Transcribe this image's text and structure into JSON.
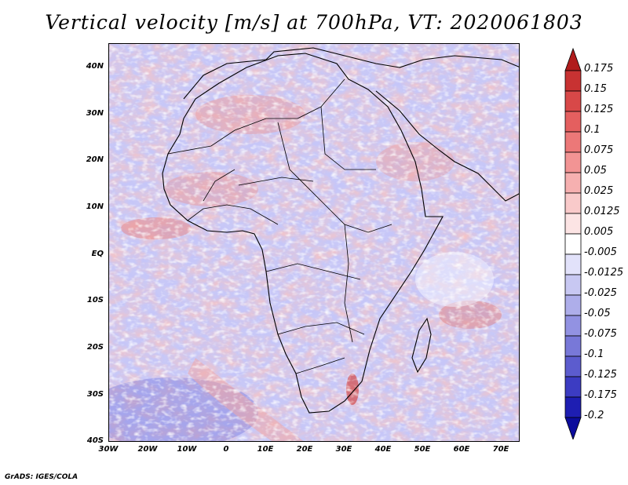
{
  "title": "Vertical velocity [m/s] at 700hPa, VT: 2020061803",
  "credit": "GrADS: IGES/COLA",
  "map": {
    "lat_labels": [
      "40N",
      "30N",
      "20N",
      "10N",
      "EQ",
      "10S",
      "20S",
      "30S",
      "40S"
    ],
    "lon_labels": [
      "30W",
      "20W",
      "10W",
      "0",
      "10E",
      "20E",
      "30E",
      "40E",
      "50E",
      "60E",
      "70E"
    ],
    "lat_range": [
      -40,
      45
    ],
    "lon_range": [
      -30,
      75
    ]
  },
  "colorbar": {
    "labels": [
      "0.175",
      "0.15",
      "0.125",
      "0.1",
      "0.075",
      "0.05",
      "0.025",
      "0.0125",
      "0.005",
      "-0.005",
      "-0.0125",
      "-0.025",
      "-0.05",
      "-0.075",
      "-0.1",
      "-0.125",
      "-0.175",
      "-0.2"
    ],
    "colors": [
      "#b01c1c",
      "#c83232",
      "#d84848",
      "#e45f5f",
      "#ec7878",
      "#f29494",
      "#f6b0b0",
      "#f9caca",
      "#fce4e4",
      "#ffffff",
      "#e2e2fa",
      "#c8c8f2",
      "#aeaeea",
      "#9292e2",
      "#7878d8",
      "#5c5cce",
      "#3c3cc2",
      "#1e1eb2",
      "#0c0c9c"
    ]
  },
  "colors": {
    "background": "#ffffff",
    "land_outline": "#000000",
    "field_blue": "#8f8ff0",
    "field_red": "#f0a0a0",
    "field_white": "#f5f5ff"
  }
}
